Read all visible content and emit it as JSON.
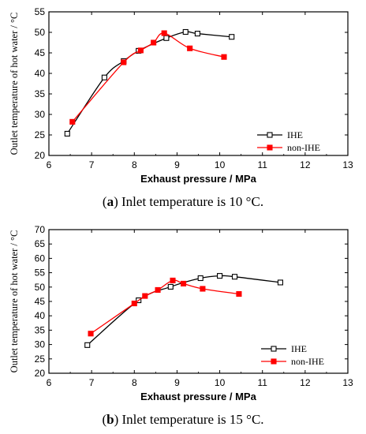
{
  "chart_data": [
    {
      "type": "line",
      "panel_letter": "a",
      "caption": "Inlet temperature is 10 °C.",
      "xlabel": "Exhaust pressure / MPa",
      "ylabel": "Outlet temperature of hot water / °C",
      "xlim": [
        6,
        13
      ],
      "ylim": [
        20,
        55
      ],
      "xticks": [
        6,
        7,
        8,
        9,
        10,
        11,
        12,
        13
      ],
      "yticks": [
        20,
        25,
        30,
        35,
        40,
        45,
        50,
        55
      ],
      "legend_position": "right",
      "series": [
        {
          "name": "IHE",
          "color": "#000000",
          "marker": "open-square",
          "x": [
            6.43,
            7.3,
            7.75,
            8.1,
            8.75,
            9.2,
            9.48,
            10.28
          ],
          "y": [
            25.3,
            39.0,
            43.0,
            45.5,
            48.6,
            50.1,
            49.7,
            48.9
          ]
        },
        {
          "name": "non-IHE",
          "color": "#ff0000",
          "marker": "filled-square",
          "x": [
            6.55,
            7.75,
            8.15,
            8.45,
            8.7,
            9.3,
            10.1
          ],
          "y": [
            28.2,
            42.7,
            45.6,
            47.5,
            49.8,
            46.1,
            44.0
          ]
        }
      ]
    },
    {
      "type": "line",
      "panel_letter": "b",
      "caption": "Inlet temperature is 15 °C.",
      "xlabel": "Exhaust pressure / MPa",
      "ylabel": "Outlet temperature of hot water / °C",
      "xlim": [
        6,
        13
      ],
      "ylim": [
        20,
        70
      ],
      "xticks": [
        6,
        7,
        8,
        9,
        10,
        11,
        12,
        13
      ],
      "yticks": [
        20,
        25,
        30,
        35,
        40,
        45,
        50,
        55,
        60,
        65,
        70
      ],
      "legend_position": "right",
      "series": [
        {
          "name": "IHE",
          "color": "#000000",
          "marker": "open-square",
          "x": [
            6.9,
            8.1,
            8.85,
            9.55,
            10.0,
            10.35,
            11.42
          ],
          "y": [
            29.8,
            45.4,
            50.1,
            53.1,
            53.9,
            53.6,
            51.6
          ]
        },
        {
          "name": "non-IHE",
          "color": "#ff0000",
          "marker": "filled-square",
          "x": [
            6.98,
            8.0,
            8.25,
            8.55,
            8.9,
            9.15,
            9.6,
            10.45
          ],
          "y": [
            33.8,
            44.3,
            46.9,
            49.0,
            52.3,
            51.2,
            49.4,
            47.6
          ]
        }
      ]
    }
  ]
}
